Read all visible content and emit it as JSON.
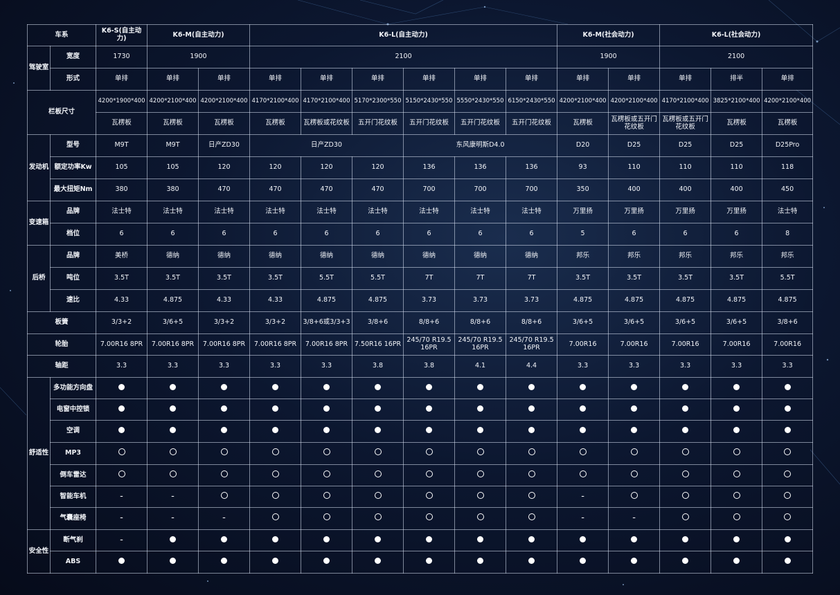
{
  "header": {
    "label": "车系",
    "models": [
      "K6-S(自主动力)",
      "K6-M(自主动力)",
      "K6-L(自主动力)",
      "K6-M(社会动力)",
      "K6-L(社会动力)"
    ]
  },
  "cab": {
    "group": "驾驶室",
    "width": {
      "label": "宽度",
      "values": [
        "1730",
        "1900",
        "2100",
        "1900",
        "2100"
      ]
    },
    "form": {
      "label": "形式",
      "values": [
        "单排",
        "单排",
        "单排",
        "单排",
        "单排",
        "单排",
        "单排",
        "单排",
        "单排",
        "单排",
        "单排",
        "单排",
        "排半",
        "单排"
      ]
    }
  },
  "fence": {
    "group": "栏板尺寸",
    "size": [
      "4200*1900*400",
      "4200*2100*400",
      "4200*2100*400",
      "4170*2100*400",
      "4170*2100*400",
      "5170*2300*550",
      "5150*2430*550",
      "5550*2430*550",
      "6150*2430*550",
      "4200*2100*400",
      "4200*2100*400",
      "4170*2100*400",
      "3825*2100*400",
      "4200*2100*400"
    ],
    "type": [
      "瓦楞板",
      "瓦楞板",
      "瓦楞板",
      "瓦楞板",
      "瓦楞板或花纹板",
      "五开门花纹板",
      "五开门花纹板",
      "五开门花纹板",
      "五开门花纹板",
      "瓦楞板",
      "瓦楞板或五开门花纹板",
      "瓦楞板或五开门花纹板",
      "瓦楞板",
      "瓦楞板"
    ]
  },
  "engine": {
    "group": "发动机",
    "model": {
      "label": "型号",
      "values": [
        "M9T",
        "M9T",
        "日产ZD30",
        "日产ZD30",
        "东风康明斯D4.0",
        "D20",
        "D25",
        "D25",
        "D25",
        "D25Pro"
      ]
    },
    "power": {
      "label": "额定功率Kw",
      "values": [
        "105",
        "105",
        "120",
        "120",
        "120",
        "120",
        "136",
        "136",
        "136",
        "93",
        "110",
        "110",
        "110",
        "118"
      ]
    },
    "torque": {
      "label": "最大扭矩Nm",
      "values": [
        "380",
        "380",
        "470",
        "470",
        "470",
        "470",
        "700",
        "700",
        "700",
        "350",
        "400",
        "400",
        "400",
        "450"
      ]
    }
  },
  "gearbox": {
    "group": "变速箱",
    "brand": {
      "label": "品牌",
      "values": [
        "法士特",
        "法士特",
        "法士特",
        "法士特",
        "法士特",
        "法士特",
        "法士特",
        "法士特",
        "法士特",
        "万里扬",
        "万里扬",
        "万里扬",
        "万里扬",
        "法士特"
      ]
    },
    "gears": {
      "label": "档位",
      "values": [
        "6",
        "6",
        "6",
        "6",
        "6",
        "6",
        "6",
        "6",
        "6",
        "5",
        "6",
        "6",
        "6",
        "8"
      ]
    }
  },
  "axle": {
    "group": "后桥",
    "brand": {
      "label": "品牌",
      "values": [
        "美桥",
        "德纳",
        "德纳",
        "德纳",
        "德纳",
        "德纳",
        "德纳",
        "德纳",
        "德纳",
        "邦乐",
        "邦乐",
        "邦乐",
        "邦乐",
        "邦乐"
      ]
    },
    "tonnage": {
      "label": "吨位",
      "values": [
        "3.5T",
        "3.5T",
        "3.5T",
        "3.5T",
        "5.5T",
        "5.5T",
        "7T",
        "7T",
        "7T",
        "3.5T",
        "3.5T",
        "3.5T",
        "3.5T",
        "5.5T"
      ]
    },
    "ratio": {
      "label": "速比",
      "values": [
        "4.33",
        "4.875",
        "4.33",
        "4.33",
        "4.875",
        "4.875",
        "3.73",
        "3.73",
        "3.73",
        "4.875",
        "4.875",
        "4.875",
        "4.875",
        "4.875"
      ]
    }
  },
  "leaf_spring": {
    "label": "板簧",
    "values": [
      "3/3+2",
      "3/6+5",
      "3/3+2",
      "3/3+2",
      "3/8+6或3/3+3",
      "3/8+6",
      "8/8+6",
      "8/8+6",
      "8/8+6",
      "3/6+5",
      "3/6+5",
      "3/6+5",
      "3/6+5",
      "3/8+6"
    ]
  },
  "tire": {
    "label": "轮胎",
    "values": [
      "7.00R16 8PR",
      "7.00R16 8PR",
      "7.00R16 8PR",
      "7.00R16 8PR",
      "7.00R16 8PR",
      "7.50R16 16PR",
      "245/70 R19.5 16PR",
      "245/70 R19.5 16PR",
      "245/70 R19.5 16PR",
      "7.00R16",
      "7.00R16",
      "7.00R16",
      "7.00R16",
      "7.00R16"
    ]
  },
  "wheelbase": {
    "label": "轴距",
    "values": [
      "3.3",
      "3.3",
      "3.3",
      "3.3",
      "3.3",
      "3.8",
      "3.8",
      "4.1",
      "4.4",
      "3.3",
      "3.3",
      "3.3",
      "3.3",
      "3.3"
    ]
  },
  "comfort": {
    "group": "舒适性",
    "rows": [
      {
        "label": "多功能方向盘",
        "values": [
          "●",
          "●",
          "●",
          "●",
          "●",
          "●",
          "●",
          "●",
          "●",
          "●",
          "●",
          "●",
          "●",
          "●"
        ]
      },
      {
        "label": "电窗中控锁",
        "values": [
          "●",
          "●",
          "●",
          "●",
          "●",
          "●",
          "●",
          "●",
          "●",
          "●",
          "●",
          "●",
          "●",
          "●"
        ]
      },
      {
        "label": "空调",
        "values": [
          "●",
          "●",
          "●",
          "●",
          "●",
          "●",
          "●",
          "●",
          "●",
          "●",
          "●",
          "●",
          "●",
          "●"
        ]
      },
      {
        "label": "MP3",
        "values": [
          "○",
          "○",
          "○",
          "○",
          "○",
          "○",
          "○",
          "○",
          "○",
          "○",
          "○",
          "○",
          "○",
          "○"
        ]
      },
      {
        "label": "倒车雷达",
        "values": [
          "○",
          "○",
          "○",
          "○",
          "○",
          "○",
          "○",
          "○",
          "○",
          "○",
          "○",
          "○",
          "○",
          "○"
        ]
      },
      {
        "label": "智能车机",
        "values": [
          "-",
          "-",
          "○",
          "○",
          "○",
          "○",
          "○",
          "○",
          "○",
          "-",
          "○",
          "○",
          "○",
          "○"
        ]
      },
      {
        "label": "气囊座椅",
        "values": [
          "-",
          "-",
          "-",
          "○",
          "○",
          "○",
          "○",
          "○",
          "○",
          "-",
          "-",
          "○",
          "○",
          "○"
        ]
      }
    ]
  },
  "safety": {
    "group": "安全性",
    "rows": [
      {
        "label": "断气刹",
        "values": [
          "-",
          "●",
          "●",
          "●",
          "●",
          "●",
          "●",
          "●",
          "●",
          "●",
          "●",
          "●",
          "●",
          "●"
        ]
      },
      {
        "label": "ABS",
        "values": [
          "●",
          "●",
          "●",
          "●",
          "●",
          "●",
          "●",
          "●",
          "●",
          "●",
          "●",
          "●",
          "●",
          "●"
        ]
      }
    ]
  }
}
